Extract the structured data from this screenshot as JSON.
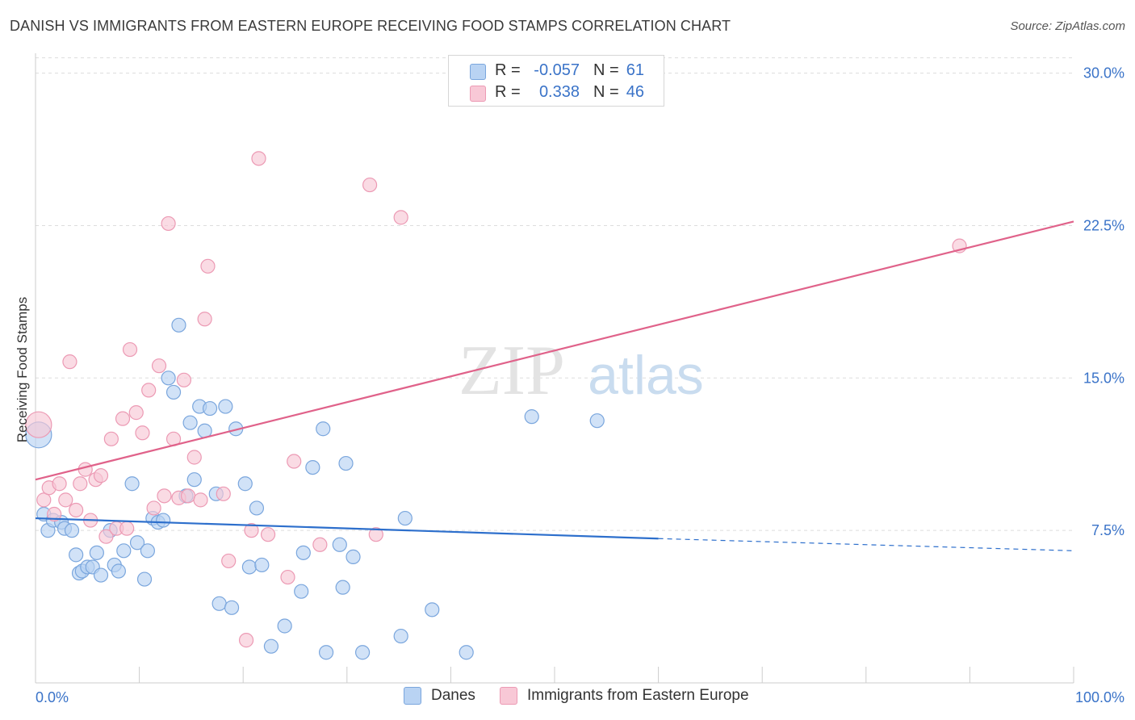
{
  "title": "DANISH VS IMMIGRANTS FROM EASTERN EUROPE RECEIVING FOOD STAMPS CORRELATION CHART",
  "source": "Source: ZipAtlas.com",
  "watermark": {
    "zip": "ZIP",
    "atlas": "atlas"
  },
  "colors": {
    "danes_fill": "#b9d3f3",
    "danes_stroke": "#7aa6dd",
    "danes_line": "#2d6fcc",
    "imm_fill": "#f8c8d6",
    "imm_stroke": "#ec9ab4",
    "imm_line": "#e0628a",
    "grid": "#dddddd",
    "axis_tick_label": "#3a73c8"
  },
  "legend_top": {
    "rows": [
      {
        "r_label": "R =",
        "r_value": "-0.057",
        "n_label": "N =",
        "n_value": "61"
      },
      {
        "r_label": "R =",
        "r_value": "0.338",
        "n_label": "N =",
        "n_value": "46"
      }
    ]
  },
  "legend_bottom": {
    "danes": "Danes",
    "immigrants": "Immigrants from Eastern Europe"
  },
  "chart_data": {
    "type": "scatter",
    "title": "DANISH VS IMMIGRANTS FROM EASTERN EUROPE RECEIVING FOOD STAMPS CORRELATION CHART",
    "ylabel": "Receiving Food Stamps",
    "xlabel": "",
    "xlim": [
      0,
      100
    ],
    "ylim": [
      0,
      30.5
    ],
    "x_tick_labels": [
      "0.0%",
      "100.0%"
    ],
    "y_ticks": [
      7.5,
      15.0,
      22.5,
      30.0
    ],
    "y_tick_labels": [
      "7.5%",
      "15.0%",
      "22.5%",
      "30.0%"
    ],
    "grid": true,
    "legend_placement": "top-center",
    "series": [
      {
        "name": "Danes",
        "points": [
          [
            0.3,
            12.2
          ],
          [
            0.8,
            8.3
          ],
          [
            1.2,
            7.5
          ],
          [
            1.7,
            8.0
          ],
          [
            2.5,
            7.9
          ],
          [
            2.8,
            7.6
          ],
          [
            3.5,
            7.5
          ],
          [
            3.9,
            6.3
          ],
          [
            4.2,
            5.4
          ],
          [
            4.5,
            5.5
          ],
          [
            5.0,
            5.7
          ],
          [
            5.5,
            5.7
          ],
          [
            5.9,
            6.4
          ],
          [
            6.3,
            5.3
          ],
          [
            7.2,
            7.5
          ],
          [
            7.6,
            5.8
          ],
          [
            8.0,
            5.5
          ],
          [
            8.5,
            6.5
          ],
          [
            9.3,
            9.8
          ],
          [
            9.8,
            6.9
          ],
          [
            10.5,
            5.1
          ],
          [
            10.8,
            6.5
          ],
          [
            11.3,
            8.1
          ],
          [
            11.8,
            7.9
          ],
          [
            12.3,
            8.0
          ],
          [
            12.8,
            15.0
          ],
          [
            13.3,
            14.3
          ],
          [
            13.8,
            17.6
          ],
          [
            14.5,
            9.2
          ],
          [
            14.9,
            12.8
          ],
          [
            15.3,
            10.0
          ],
          [
            15.8,
            13.6
          ],
          [
            16.3,
            12.4
          ],
          [
            16.8,
            13.5
          ],
          [
            17.4,
            9.3
          ],
          [
            17.7,
            3.9
          ],
          [
            18.3,
            13.6
          ],
          [
            18.9,
            3.7
          ],
          [
            19.3,
            12.5
          ],
          [
            20.2,
            9.8
          ],
          [
            20.6,
            5.7
          ],
          [
            21.3,
            8.6
          ],
          [
            21.8,
            5.8
          ],
          [
            22.7,
            1.8
          ],
          [
            24.0,
            2.8
          ],
          [
            25.6,
            4.5
          ],
          [
            25.8,
            6.4
          ],
          [
            26.7,
            10.6
          ],
          [
            27.7,
            12.5
          ],
          [
            28.0,
            1.5
          ],
          [
            29.3,
            6.8
          ],
          [
            29.6,
            4.7
          ],
          [
            29.9,
            10.8
          ],
          [
            30.6,
            6.2
          ],
          [
            31.5,
            1.5
          ],
          [
            35.2,
            2.3
          ],
          [
            35.6,
            8.1
          ],
          [
            38.2,
            3.6
          ],
          [
            41.5,
            1.5
          ],
          [
            47.8,
            13.1
          ],
          [
            54.1,
            12.9
          ]
        ],
        "trend": {
          "x0": 0,
          "y0": 8.1,
          "x1": 60,
          "y1": 7.1,
          "dashed_to_x": 100,
          "dashed_to_y": 6.5
        }
      },
      {
        "name": "Immigrants from Eastern Europe",
        "points": [
          [
            0.3,
            12.7
          ],
          [
            0.8,
            9.0
          ],
          [
            1.3,
            9.6
          ],
          [
            1.8,
            8.3
          ],
          [
            2.3,
            9.8
          ],
          [
            2.9,
            9.0
          ],
          [
            3.3,
            15.8
          ],
          [
            3.9,
            8.5
          ],
          [
            4.3,
            9.8
          ],
          [
            4.8,
            10.5
          ],
          [
            5.3,
            8.0
          ],
          [
            5.8,
            10.0
          ],
          [
            6.3,
            10.2
          ],
          [
            6.8,
            7.2
          ],
          [
            7.3,
            12.0
          ],
          [
            7.8,
            7.6
          ],
          [
            8.4,
            13.0
          ],
          [
            8.8,
            7.6
          ],
          [
            9.1,
            16.4
          ],
          [
            9.7,
            13.3
          ],
          [
            10.3,
            12.3
          ],
          [
            10.9,
            14.4
          ],
          [
            11.4,
            8.6
          ],
          [
            11.9,
            15.6
          ],
          [
            12.4,
            9.2
          ],
          [
            12.8,
            22.6
          ],
          [
            13.3,
            12.0
          ],
          [
            13.8,
            9.1
          ],
          [
            14.3,
            14.9
          ],
          [
            14.7,
            9.2
          ],
          [
            15.3,
            11.1
          ],
          [
            15.9,
            9.0
          ],
          [
            16.3,
            17.9
          ],
          [
            16.6,
            20.5
          ],
          [
            18.1,
            9.3
          ],
          [
            18.6,
            6.0
          ],
          [
            20.3,
            2.1
          ],
          [
            20.8,
            7.5
          ],
          [
            21.5,
            25.8
          ],
          [
            22.4,
            7.3
          ],
          [
            24.3,
            5.2
          ],
          [
            24.9,
            10.9
          ],
          [
            27.4,
            6.8
          ],
          [
            32.2,
            24.5
          ],
          [
            32.8,
            7.3
          ],
          [
            35.2,
            22.9
          ],
          [
            89.0,
            21.5
          ]
        ],
        "trend": {
          "x0": 0,
          "y0": 10.0,
          "x1": 100,
          "y1": 22.7
        }
      }
    ]
  }
}
